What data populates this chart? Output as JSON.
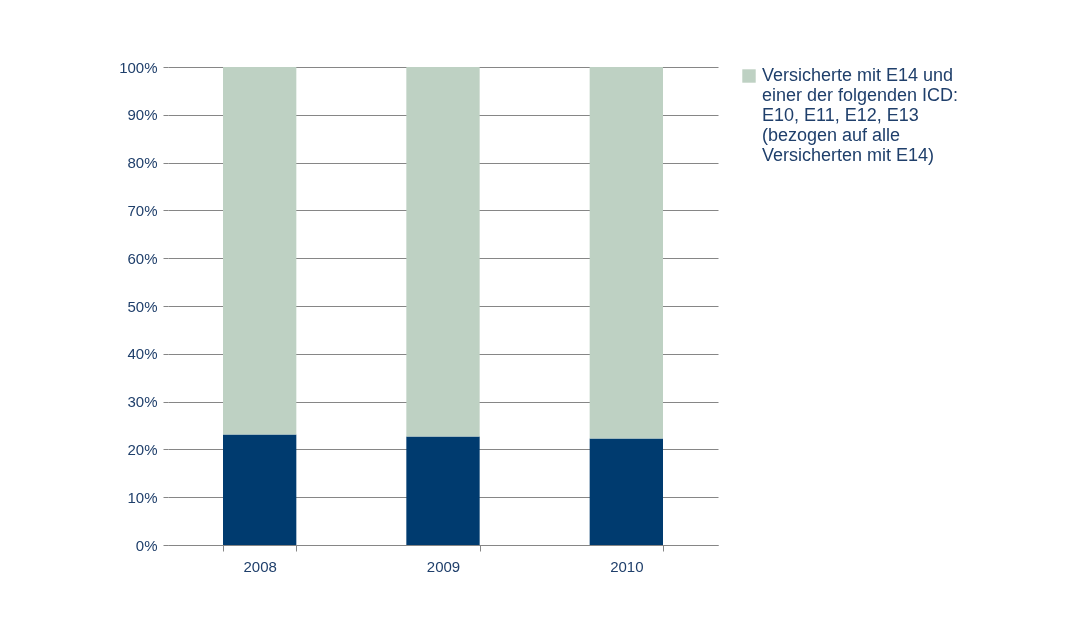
{
  "chart_data": {
    "type": "bar",
    "stacked": true,
    "categories": [
      "2008",
      "2009",
      "2010"
    ],
    "series": [
      {
        "color": "#003b6f",
        "values": [
          23.1,
          22.7,
          22.3
        ]
      },
      {
        "name": "Versicherte mit E14 und einer der folgenden ICD:  E10,  E11, E12, E13 (bezogen auf alle Versicherten mit E14)",
        "color": "#bed1c3",
        "values": [
          76.9,
          77.3,
          77.7
        ]
      }
    ],
    "ylim": [
      0,
      100
    ],
    "yticks": [
      {
        "value": 0,
        "label": "0%"
      },
      {
        "value": 10,
        "label": "10%"
      },
      {
        "value": 20,
        "label": "20%"
      },
      {
        "value": 30,
        "label": "30%"
      },
      {
        "value": 40,
        "label": "40%"
      },
      {
        "value": 50,
        "label": "50%"
      },
      {
        "value": 60,
        "label": "60%"
      },
      {
        "value": 70,
        "label": "70%"
      },
      {
        "value": 80,
        "label": "80%"
      },
      {
        "value": 90,
        "label": "90%"
      },
      {
        "value": 100,
        "label": "100%"
      }
    ],
    "grid": "y",
    "legend": "right"
  }
}
